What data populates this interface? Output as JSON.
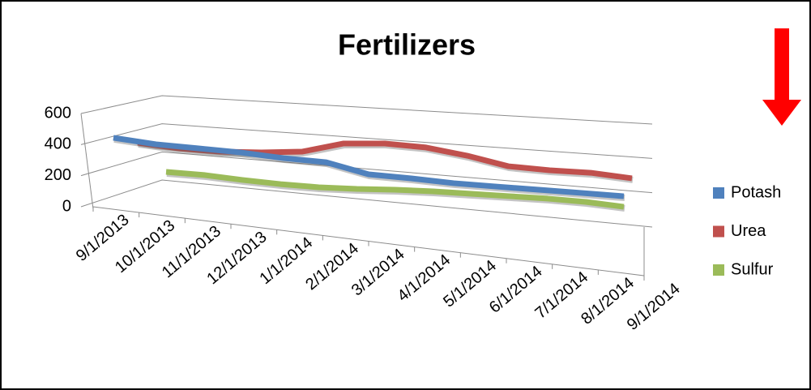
{
  "chart_data": {
    "type": "line3d",
    "title": "Fertilizers",
    "categories": [
      "9/1/2013",
      "10/1/2013",
      "11/1/2013",
      "12/1/2013",
      "1/1/2014",
      "2/1/2014",
      "3/1/2014",
      "4/1/2014",
      "5/1/2014",
      "6/1/2014",
      "7/1/2014",
      "8/1/2014",
      "9/1/2014"
    ],
    "series": [
      {
        "name": "Potash",
        "color": "#4f81bd",
        "values": [
          417,
          386,
          372,
          358,
          333,
          319,
          250,
          236,
          217,
          208,
          200,
          192,
          183
        ]
      },
      {
        "name": "Urea",
        "color": "#c0504d",
        "values": [
          339,
          315,
          308,
          318,
          339,
          410,
          425,
          413,
          372,
          315,
          303,
          301,
          278
        ]
      },
      {
        "name": "Sulfur",
        "color": "#9bbb59",
        "values": [
          100,
          96,
          80,
          69,
          65,
          71,
          83,
          90,
          91,
          92,
          93,
          88,
          72
        ]
      }
    ],
    "ylim": [
      0,
      600
    ],
    "yticks": [
      0,
      200,
      400,
      600
    ],
    "grid": true,
    "legend": "right"
  }
}
